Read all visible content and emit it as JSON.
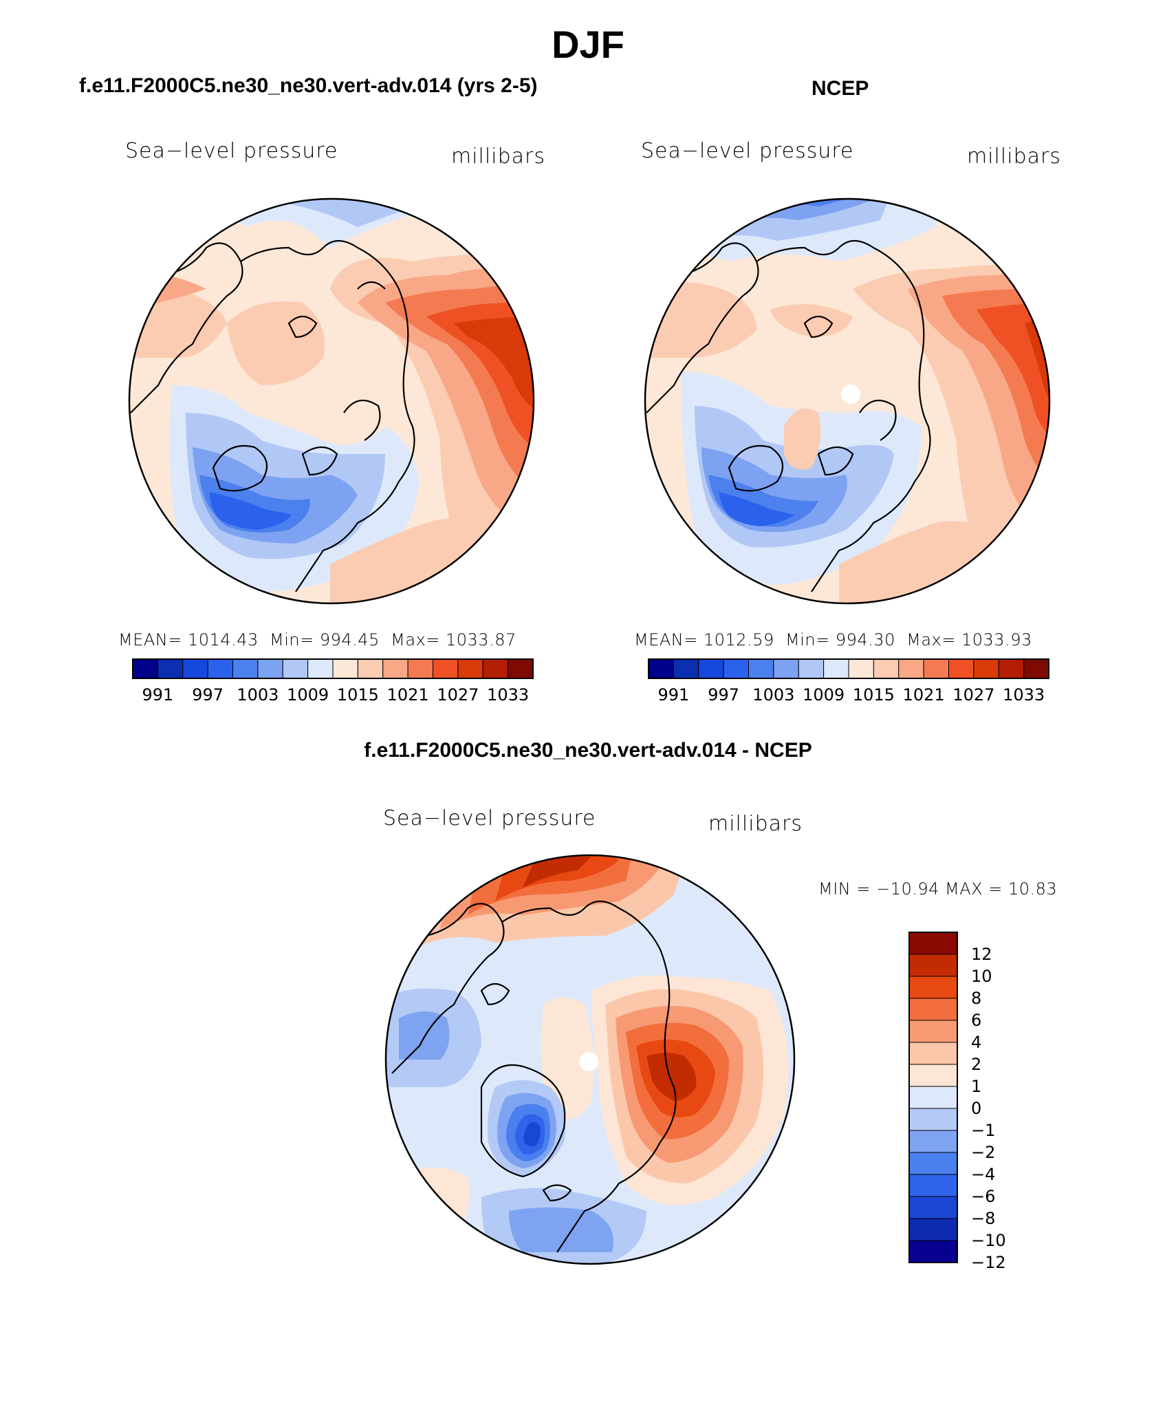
{
  "title": "DJF",
  "colors": {
    "colorbar15": [
      "#00008a",
      "#0b2fb0",
      "#1548dd",
      "#2a62ee",
      "#4b80ee",
      "#7ea2f2",
      "#b1c8f7",
      "#dde9fb",
      "#fde8d8",
      "#fbcbb2",
      "#f8a886",
      "#f47a52",
      "#ef5124",
      "#d93a07",
      "#b21d04",
      "#7e0a01"
    ],
    "diff": [
      "#08008f",
      "#0e2ab0",
      "#1a46d4",
      "#2f63ea",
      "#4a7fee",
      "#7ea3f1",
      "#b3c9f6",
      "#dde9fb",
      "#fde6d5",
      "#fbc7aa",
      "#f79a73",
      "#f26e3d",
      "#e84812",
      "#c32c03",
      "#8a0a01"
    ],
    "coastline": "#000000"
  },
  "panels": {
    "case": {
      "title": "f.e11.F2000C5.ne30_ne30.vert-adv.014 (yrs 2-5)",
      "left_label": "Sea−level pressure",
      "right_label": "millibars",
      "mean_label": "MEAN=",
      "mean": "1014.43",
      "min_label": "Min=",
      "min": "994.45",
      "max_label": "Max=",
      "max": "1033.87"
    },
    "ncep": {
      "title": "NCEP",
      "left_label": "Sea−level pressure",
      "right_label": "millibars",
      "mean_label": "MEAN=",
      "mean": "1012.59",
      "min_label": "Min=",
      "min": "994.30",
      "max_label": "Max=",
      "max": "1033.93"
    },
    "diff": {
      "title": "f.e11.F2000C5.ne30_ne30.vert-adv.014 - NCEP",
      "left_label": "Sea−level pressure",
      "right_label": "millibars",
      "minmax_text": "MIN = −10.94  MAX =   10.83"
    }
  },
  "chart_data": [
    {
      "type": "heatmap",
      "projection": "north polar stereographic",
      "title": "f.e11.F2000C5.ne30_ne30.vert-adv.014 (yrs 2-5)",
      "variable": "Sea-level pressure",
      "units": "millibars",
      "stats": {
        "mean": 1014.43,
        "min": 994.45,
        "max": 1033.87
      },
      "colorbar_levels": [
        991,
        994,
        997,
        1000,
        1003,
        1006,
        1009,
        1012,
        1015,
        1018,
        1021,
        1024,
        1027,
        1030,
        1033
      ],
      "colorbar_tick_labels": [
        "991",
        "997",
        "1003",
        "1009",
        "1015",
        "1021",
        "1027",
        "1033"
      ]
    },
    {
      "type": "heatmap",
      "projection": "north polar stereographic",
      "title": "NCEP",
      "variable": "Sea-level pressure",
      "units": "millibars",
      "stats": {
        "mean": 1012.59,
        "min": 994.3,
        "max": 1033.93
      },
      "colorbar_levels": [
        991,
        994,
        997,
        1000,
        1003,
        1006,
        1009,
        1012,
        1015,
        1018,
        1021,
        1024,
        1027,
        1030,
        1033
      ],
      "colorbar_tick_labels": [
        "991",
        "997",
        "1003",
        "1009",
        "1015",
        "1021",
        "1027",
        "1033"
      ]
    },
    {
      "type": "heatmap",
      "projection": "north polar stereographic",
      "title": "f.e11.F2000C5.ne30_ne30.vert-adv.014 - NCEP",
      "variable": "Sea-level pressure",
      "units": "millibars",
      "stats": {
        "min": -10.94,
        "max": 10.83
      },
      "colorbar_levels": [
        12,
        10,
        8,
        6,
        4,
        2,
        1,
        0,
        -1,
        -2,
        -4,
        -6,
        -8,
        -10,
        -12
      ],
      "colorbar_tick_labels": [
        "12",
        "10",
        "8",
        "6",
        "4",
        "2",
        "1",
        "0",
        "−1",
        "−2",
        "−4",
        "−6",
        "−8",
        "−10",
        "−12"
      ]
    }
  ]
}
